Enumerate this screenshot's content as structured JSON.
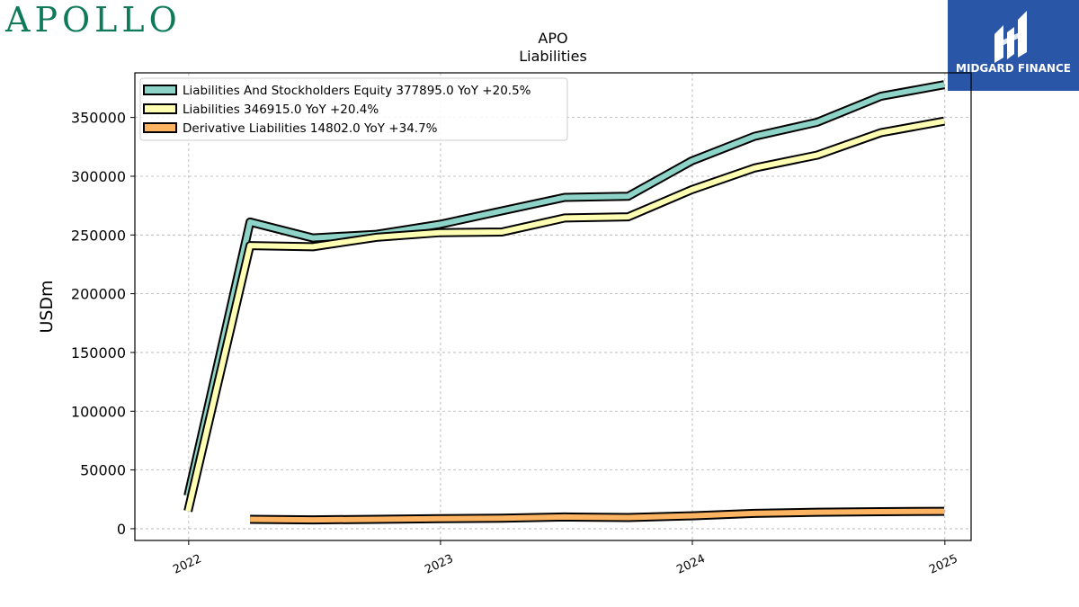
{
  "brand": {
    "name": "APOLLO",
    "color": "#0f7a5a"
  },
  "badge": {
    "text": "MIDGARD FINANCE",
    "icon": "midgard-logo-icon",
    "color": "#2a56a8"
  },
  "chart_data": {
    "type": "line",
    "title": "APO",
    "subtitle": "Liabilities",
    "ylabel": "USDm",
    "xlabel": "",
    "ylim": [
      -10000,
      388000
    ],
    "xlim": [
      "2021-10-15",
      "2025-02-08"
    ],
    "y_ticks": [
      0,
      50000,
      100000,
      150000,
      200000,
      250000,
      300000,
      350000
    ],
    "x_ticks": [
      "2022-01-01",
      "2023-01-01",
      "2024-01-01",
      "2025-01-01"
    ],
    "x_tick_labels": [
      "2022",
      "2023",
      "2024",
      "2025"
    ],
    "grid": true,
    "legend_position": "top-left",
    "series": [
      {
        "name": "Liabilities And Stockholders Equity",
        "legend": "Liabilities And Stockholders Equity  377895.0 YoY +20.5%",
        "color": "#8dd3c7",
        "x": [
          "2021-12-31",
          "2022-03-31",
          "2022-06-30",
          "2022-09-30",
          "2022-12-31",
          "2023-03-31",
          "2023-06-30",
          "2023-09-30",
          "2023-12-31",
          "2024-03-31",
          "2024-06-30",
          "2024-09-30",
          "2024-12-31"
        ],
        "values": [
          28000,
          261000,
          247500,
          250500,
          259000,
          270500,
          282000,
          283000,
          313000,
          334000,
          346000,
          368000,
          377895
        ]
      },
      {
        "name": "Liabilities",
        "legend": "Liabilities  346915.0 YoY +20.4%",
        "color": "#ffffb3",
        "x": [
          "2021-12-31",
          "2022-03-31",
          "2022-06-30",
          "2022-09-30",
          "2022-12-31",
          "2023-03-31",
          "2023-06-30",
          "2023-09-30",
          "2023-12-31",
          "2024-03-31",
          "2024-06-30",
          "2024-09-30",
          "2024-12-31"
        ],
        "values": [
          15000,
          241000,
          240000,
          248000,
          252000,
          252500,
          264500,
          265500,
          288500,
          307000,
          318000,
          337000,
          346915
        ]
      },
      {
        "name": "Derivative Liabilities",
        "legend": "Derivative Liabilities  14802.0 YoY +34.7%",
        "color": "#fdb462",
        "x": [
          "2022-03-31",
          "2022-06-30",
          "2022-09-30",
          "2022-12-31",
          "2023-03-31",
          "2023-06-30",
          "2023-09-30",
          "2023-12-31",
          "2024-03-31",
          "2024-06-30",
          "2024-09-30",
          "2024-12-31"
        ],
        "values": [
          8000,
          7500,
          8000,
          8500,
          9000,
          10000,
          9500,
          11000,
          13000,
          14000,
          14500,
          14802
        ]
      }
    ]
  }
}
